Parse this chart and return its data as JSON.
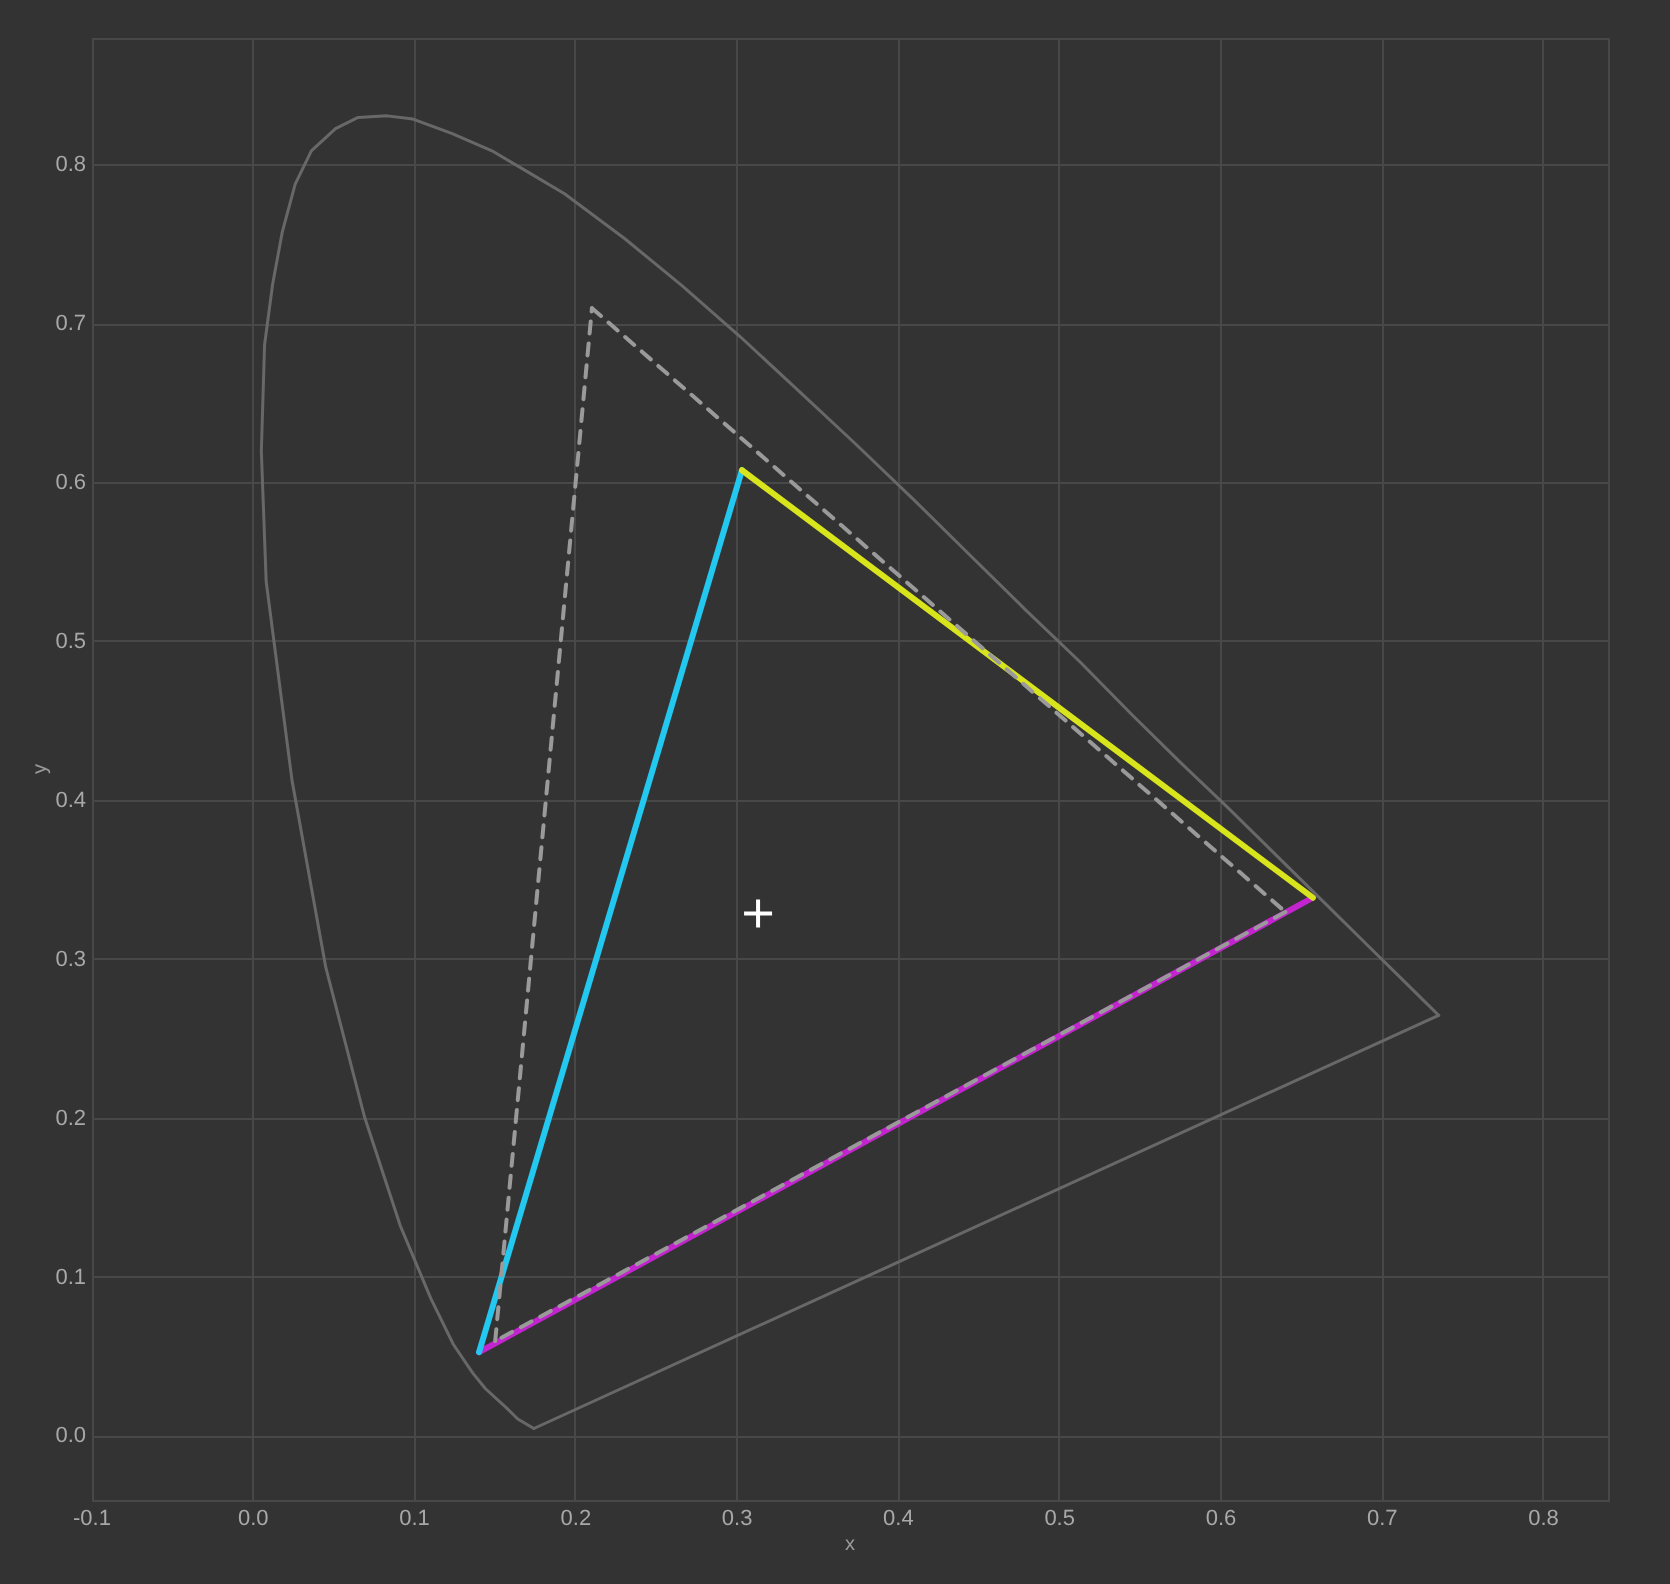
{
  "chart_data": {
    "type": "line",
    "xlabel": "x",
    "ylabel": "y",
    "xlim": [
      -0.1,
      0.84
    ],
    "ylim": [
      -0.04,
      0.88
    ],
    "xticks": [
      -0.1,
      {
        "value": 0,
        "label": "0.0"
      },
      0.1,
      0.2,
      0.3,
      0.4,
      0.5,
      0.6,
      0.7,
      0.8
    ],
    "yticks": [
      {
        "value": 0,
        "label": "0.0"
      },
      0.1,
      0.2,
      0.3,
      0.4,
      0.5,
      0.6,
      0.7,
      0.8
    ],
    "grid": true,
    "legend": false,
    "series": [
      {
        "type": "line",
        "color": "#686868",
        "line_style": "solid",
        "x": [
          0.174,
          0.164,
          0.157,
          0.144,
          0.136,
          0.124,
          0.11,
          0.091,
          0.069,
          0.045,
          0.024,
          0.008,
          0.005,
          0.007,
          0.012,
          0.018,
          0.026,
          0.036,
          0.051,
          0.065,
          0.083,
          0.099,
          0.123,
          0.148,
          0.173,
          0.193,
          0.23,
          0.266,
          0.302,
          0.337,
          0.373,
          0.409,
          0.444,
          0.479,
          0.513,
          0.545,
          0.575,
          0.603,
          0.627,
          0.666,
          0.692,
          0.708,
          0.719,
          0.73,
          0.735
        ],
        "values": [
          0.005,
          0.011,
          0.018,
          0.03,
          0.04,
          0.058,
          0.087,
          0.133,
          0.201,
          0.295,
          0.413,
          0.538,
          0.62,
          0.687,
          0.725,
          0.758,
          0.788,
          0.809,
          0.823,
          0.83,
          0.831,
          0.829,
          0.82,
          0.809,
          0.794,
          0.782,
          0.754,
          0.724,
          0.692,
          0.659,
          0.625,
          0.59,
          0.555,
          0.52,
          0.487,
          0.454,
          0.424,
          0.397,
          0.373,
          0.334,
          0.308,
          0.292,
          0.281,
          0.27,
          0.265
        ]
      },
      {
        "type": "line",
        "color": "#686868",
        "line_style": "solid",
        "x": [
          0.735,
          0.174
        ],
        "values": [
          0.265,
          0.005
        ]
      },
      {
        "type": "line",
        "color": "#9a9a9a",
        "line_style": "dashed",
        "x": [
          0.21,
          0.64
        ],
        "values": [
          0.71,
          0.33
        ]
      },
      {
        "type": "line",
        "color": "#9a9a9a",
        "line_style": "dashed",
        "x": [
          0.64,
          0.15
        ],
        "values": [
          0.33,
          0.06
        ]
      },
      {
        "type": "line",
        "color": "#9a9a9a",
        "line_style": "dashed",
        "x": [
          0.15,
          0.21
        ],
        "values": [
          0.06,
          0.71
        ]
      },
      {
        "type": "line",
        "color": "#d8e41c",
        "line_style": "solid",
        "x": [
          0.657,
          0.303
        ],
        "values": [
          0.339,
          0.608
        ]
      },
      {
        "type": "line",
        "color": "#22c8f0",
        "line_style": "solid",
        "x": [
          0.303,
          0.14
        ],
        "values": [
          0.608,
          0.053
        ]
      },
      {
        "type": "line",
        "color": "#c424d0",
        "line_style": "solid",
        "x": [
          0.14,
          0.657
        ],
        "values": [
          0.053,
          0.339
        ]
      },
      {
        "type": "scatter",
        "color": "#ffffff",
        "marker": "cross",
        "x": [
          0.313
        ],
        "values": [
          0.329
        ]
      }
    ]
  }
}
